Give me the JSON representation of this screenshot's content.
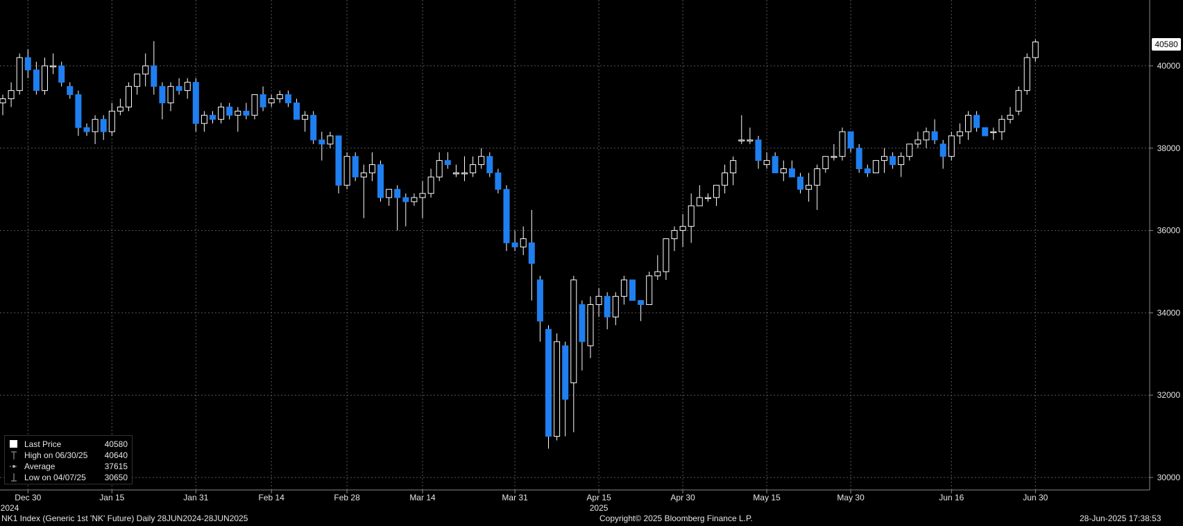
{
  "footer": {
    "left": "NK1 Index (Generic 1st 'NK' Future)  Daily 28JUN2024-28JUN2025",
    "center": "Copyright© 2025 Bloomberg Finance L.P.",
    "right": "28-Jun-2025 17:38:53"
  },
  "legend": {
    "last_price_label": "Last Price",
    "last_price_value": "40580",
    "high_label": "High on 06/30/25",
    "high_value": "40640",
    "average_label": "Average",
    "average_value": "37615",
    "low_label": "Low on 04/07/25",
    "low_value": "30650"
  },
  "last_price_tag": "40580",
  "colors": {
    "up": "#ffffff",
    "down": "#1f7ff0",
    "grid": "#5a5a5a",
    "background": "#000000"
  },
  "chart_data": {
    "type": "candlestick",
    "ylim": [
      29800,
      42500
    ],
    "y_ticks": [
      "30000",
      "32000",
      "34000",
      "36000",
      "38000",
      "40000"
    ],
    "x_ticks": [
      "Dec 30",
      "Jan 15",
      "Jan 31",
      "Feb 14",
      "Feb 28",
      "Mar 14",
      "Mar 31",
      "Apr 15",
      "Apr 30",
      "May 15",
      "May 30",
      "Jun 16",
      "Jun 30"
    ],
    "x_tick_index": [
      3,
      13,
      23,
      32,
      41,
      50,
      61,
      71,
      81,
      91,
      101,
      113,
      123
    ],
    "year_labels": [
      {
        "text": "2024",
        "index": 0
      },
      {
        "text": "2025",
        "index": 71
      }
    ],
    "grid": true,
    "legend_position": "bottom-left",
    "candles": [
      [
        39100,
        39300,
        38800,
        39200
      ],
      [
        39200,
        39600,
        39000,
        39400
      ],
      [
        39400,
        40300,
        39300,
        40200
      ],
      [
        40200,
        40400,
        39700,
        39900
      ],
      [
        39900,
        40100,
        39300,
        39400
      ],
      [
        39400,
        40200,
        39300,
        40000
      ],
      [
        40000,
        40300,
        39800,
        40000
      ],
      [
        40000,
        40100,
        39500,
        39600
      ],
      [
        39500,
        39600,
        39200,
        39300
      ],
      [
        39300,
        39400,
        38300,
        38500
      ],
      [
        38500,
        38600,
        38300,
        38400
      ],
      [
        38400,
        38800,
        38100,
        38700
      ],
      [
        38700,
        38800,
        38200,
        38400
      ],
      [
        38400,
        39100,
        38300,
        38900
      ],
      [
        38900,
        39200,
        38800,
        39000
      ],
      [
        39000,
        39600,
        38900,
        39500
      ],
      [
        39500,
        39800,
        39300,
        39800
      ],
      [
        39800,
        40300,
        39500,
        40000
      ],
      [
        40000,
        40600,
        39300,
        39500
      ],
      [
        39500,
        39600,
        38700,
        39100
      ],
      [
        39100,
        39600,
        38900,
        39500
      ],
      [
        39500,
        39700,
        39300,
        39400
      ],
      [
        39400,
        39700,
        39200,
        39600
      ],
      [
        39600,
        39700,
        38400,
        38600
      ],
      [
        38600,
        38900,
        38400,
        38800
      ],
      [
        38800,
        38900,
        38600,
        38700
      ],
      [
        38700,
        39100,
        38600,
        39000
      ],
      [
        39000,
        39100,
        38700,
        38800
      ],
      [
        38800,
        39000,
        38400,
        38900
      ],
      [
        38900,
        39100,
        38700,
        38800
      ],
      [
        38800,
        39300,
        38700,
        39300
      ],
      [
        39300,
        39500,
        38900,
        39000
      ],
      [
        39100,
        39300,
        39000,
        39200
      ],
      [
        39200,
        39400,
        39100,
        39300
      ],
      [
        39300,
        39400,
        39000,
        39100
      ],
      [
        39100,
        39200,
        38700,
        38700
      ],
      [
        38700,
        38900,
        38400,
        38800
      ],
      [
        38800,
        38900,
        38100,
        38200
      ],
      [
        38200,
        38400,
        37700,
        38100
      ],
      [
        38100,
        38400,
        38000,
        38300
      ],
      [
        38300,
        38300,
        36900,
        37100
      ],
      [
        37100,
        37900,
        37000,
        37800
      ],
      [
        37800,
        37900,
        37200,
        37300
      ],
      [
        37300,
        37600,
        36300,
        37400
      ],
      [
        37400,
        37900,
        37200,
        37600
      ],
      [
        37600,
        37700,
        36700,
        36800
      ],
      [
        36800,
        37000,
        36600,
        37000
      ],
      [
        37000,
        37100,
        36000,
        36800
      ],
      [
        36800,
        36900,
        36100,
        36700
      ],
      [
        36700,
        36900,
        36600,
        36800
      ],
      [
        36800,
        37200,
        36300,
        36900
      ],
      [
        36900,
        37500,
        36800,
        37300
      ],
      [
        37300,
        37900,
        37200,
        37700
      ],
      [
        37700,
        37900,
        37500,
        37600
      ],
      [
        37400,
        37600,
        37300,
        37400
      ],
      [
        37400,
        37800,
        37200,
        37400
      ],
      [
        37400,
        37800,
        37300,
        37600
      ],
      [
        37600,
        38000,
        37500,
        37800
      ],
      [
        37800,
        37900,
        37300,
        37400
      ],
      [
        37400,
        37500,
        36900,
        37000
      ],
      [
        37000,
        37100,
        35500,
        35700
      ],
      [
        35700,
        36000,
        35500,
        35600
      ],
      [
        35600,
        36100,
        35400,
        35800
      ],
      [
        35700,
        36500,
        34300,
        35200
      ],
      [
        34800,
        34900,
        33300,
        33800
      ],
      [
        33600,
        33700,
        30700,
        31000
      ],
      [
        31000,
        33500,
        30900,
        33300
      ],
      [
        33200,
        33300,
        31000,
        31900
      ],
      [
        32300,
        34900,
        31100,
        34800
      ],
      [
        34200,
        34300,
        32600,
        33300
      ],
      [
        33200,
        34400,
        32900,
        34200
      ],
      [
        34200,
        34600,
        33900,
        34400
      ],
      [
        34400,
        34500,
        33600,
        33900
      ],
      [
        33900,
        34500,
        33700,
        34400
      ],
      [
        34400,
        34900,
        34200,
        34800
      ],
      [
        34800,
        34800,
        34400,
        34300
      ],
      [
        34300,
        34300,
        33800,
        34200
      ],
      [
        34200,
        35000,
        34200,
        34900
      ],
      [
        34900,
        35400,
        34800,
        35000
      ],
      [
        35000,
        35800,
        34800,
        35800
      ],
      [
        35800,
        36100,
        35500,
        36000
      ],
      [
        36000,
        36400,
        35600,
        36100
      ],
      [
        36100,
        36900,
        35700,
        36600
      ],
      [
        36600,
        37100,
        36600,
        36800
      ],
      [
        36800,
        36900,
        36700,
        36800
      ],
      [
        36800,
        37100,
        36600,
        37100
      ],
      [
        37100,
        37600,
        36900,
        37400
      ],
      [
        37400,
        37800,
        37100,
        37700
      ],
      [
        38200,
        38800,
        38100,
        38200
      ],
      [
        38200,
        38500,
        38100,
        38200
      ],
      [
        38200,
        38300,
        37500,
        37700
      ],
      [
        37600,
        37900,
        37500,
        37700
      ],
      [
        37800,
        37900,
        37400,
        37400
      ],
      [
        37400,
        37700,
        37200,
        37500
      ],
      [
        37500,
        37700,
        37300,
        37300
      ],
      [
        37300,
        37400,
        36900,
        37000
      ],
      [
        37000,
        37400,
        36700,
        37100
      ],
      [
        37100,
        37600,
        36500,
        37500
      ],
      [
        37500,
        37800,
        37400,
        37800
      ],
      [
        37800,
        38100,
        37700,
        37800
      ],
      [
        37800,
        38500,
        37700,
        38400
      ],
      [
        38400,
        38400,
        37900,
        38000
      ],
      [
        38000,
        38100,
        37400,
        37500
      ],
      [
        37500,
        37600,
        37300,
        37400
      ],
      [
        37400,
        37700,
        37400,
        37700
      ],
      [
        37700,
        38000,
        37400,
        37800
      ],
      [
        37800,
        37900,
        37500,
        37600
      ],
      [
        37600,
        37900,
        37300,
        37800
      ],
      [
        37800,
        38100,
        37700,
        38100
      ],
      [
        38100,
        38400,
        38000,
        38200
      ],
      [
        38200,
        38500,
        38000,
        38400
      ],
      [
        38400,
        38700,
        38100,
        38200
      ],
      [
        38100,
        38200,
        37500,
        37800
      ],
      [
        37800,
        38400,
        37700,
        38300
      ],
      [
        38300,
        38600,
        38100,
        38400
      ],
      [
        38400,
        38900,
        38200,
        38800
      ],
      [
        38800,
        38900,
        38400,
        38500
      ],
      [
        38500,
        38500,
        38300,
        38300
      ],
      [
        38400,
        38500,
        38200,
        38400
      ],
      [
        38400,
        38800,
        38200,
        38700
      ],
      [
        38700,
        39000,
        38600,
        38800
      ],
      [
        38900,
        39500,
        38800,
        39400
      ],
      [
        39400,
        40300,
        39300,
        40200
      ],
      [
        40200,
        40640,
        40100,
        40580
      ]
    ]
  }
}
